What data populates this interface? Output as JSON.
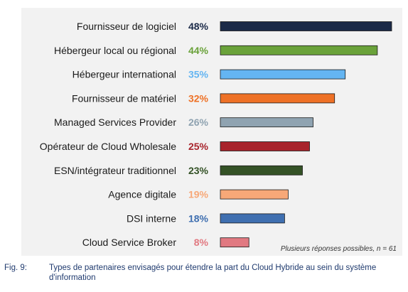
{
  "chart_data": {
    "type": "bar",
    "orientation": "horizontal",
    "categories": [
      "Fournisseur de logiciel",
      "Hébergeur local ou régional",
      "Hébergeur international",
      "Fournisseur de matériel",
      "Managed Services Provider",
      "Opérateur de Cloud Wholesale",
      "ESN/intégrateur traditionnel",
      "Agence digitale",
      "DSI interne",
      "Cloud Service Broker"
    ],
    "values": [
      48,
      44,
      35,
      32,
      26,
      25,
      23,
      19,
      18,
      8
    ],
    "value_labels": [
      "48%",
      "44%",
      "35%",
      "32%",
      "26%",
      "25%",
      "23%",
      "19%",
      "18%",
      "8%"
    ],
    "colors": [
      "#1b2a48",
      "#6aa23a",
      "#64b5f2",
      "#ee7126",
      "#8fa3b1",
      "#a8242c",
      "#345226",
      "#f7a878",
      "#3f6fb0",
      "#e17981"
    ],
    "xlim": [
      0,
      48
    ],
    "grid": false,
    "note": "Plusieurs réponses possibles, n = 61"
  },
  "caption": {
    "figure_number": "Fig. 9:",
    "text": "Types de partenaires envisagés pour étendre la part du Cloud Hybride au sein du système d'information"
  }
}
